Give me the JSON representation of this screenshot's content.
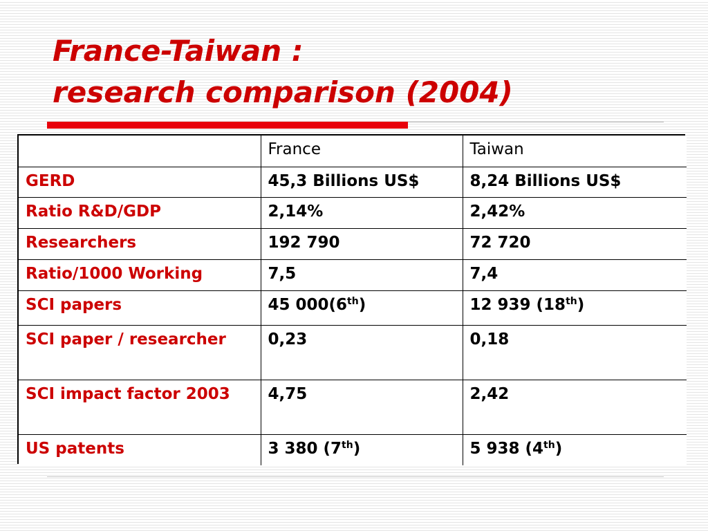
{
  "title": {
    "line1": "France-Taiwan :",
    "line2": "research comparison (2004)"
  },
  "table": {
    "headers": [
      "",
      "France",
      "Taiwan"
    ],
    "rows": [
      {
        "label": "GERD",
        "france": "45,3 Billions US$",
        "taiwan": "8,24 Billions US$"
      },
      {
        "label": "Ratio R&D/GDP",
        "france": "2,14%",
        "taiwan": "2,42%"
      },
      {
        "label": "Researchers",
        "france": "192 790",
        "taiwan": "72 720"
      },
      {
        "label": "Ratio/1000 Working",
        "france": "7,5",
        "taiwan": "7,4"
      },
      {
        "label": "SCI papers",
        "france": {
          "text": "45 000(6",
          "sup": "th",
          "close": ")"
        },
        "taiwan": {
          "text": "12 939 (18",
          "sup": "th",
          "close": ")"
        }
      },
      {
        "label": "SCI paper / researcher",
        "france": "0,23",
        "taiwan": "0,18"
      },
      {
        "label": "SCI impact factor 2003",
        "france": "4,75",
        "taiwan": "2,42"
      },
      {
        "label": "US patents",
        "france": {
          "text": "3 380 (7",
          "sup": "th",
          "close": ")"
        },
        "taiwan": {
          "text": "5 938 (4",
          "sup": "th",
          "close": ")"
        }
      }
    ]
  }
}
